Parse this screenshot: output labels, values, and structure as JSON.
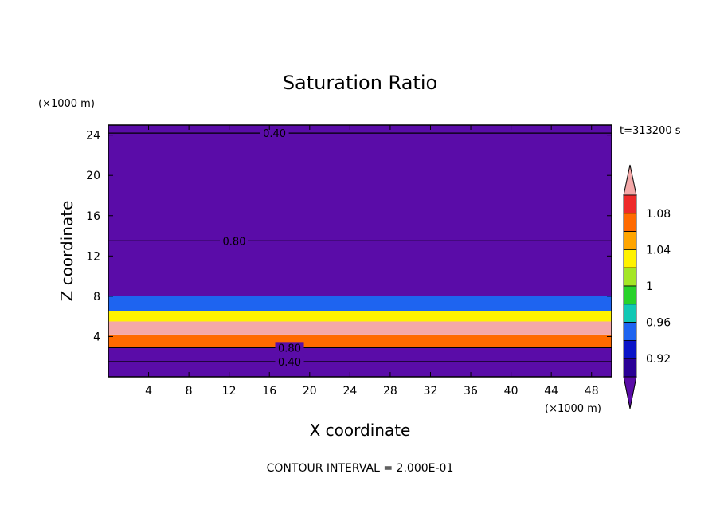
{
  "chart_data": {
    "type": "heatmap",
    "title": "Saturation Ratio",
    "xlabel": "X coordinate",
    "ylabel": "Z coordinate",
    "x_unit": "(×1000 m)",
    "y_unit": "(×1000 m)",
    "time_label": "t=313200 s",
    "footer": "CONTOUR INTERVAL = 2.000E-01",
    "xlim": [
      0,
      50
    ],
    "ylim": [
      0,
      25
    ],
    "x_ticks": [
      4,
      8,
      12,
      16,
      20,
      24,
      28,
      32,
      36,
      40,
      44,
      48
    ],
    "y_ticks": [
      4,
      8,
      12,
      16,
      20,
      24
    ],
    "grid": false,
    "colorbar": {
      "labels": [
        "1.08",
        "1.04",
        "1",
        "0.96",
        "0.92"
      ],
      "label_values": [
        1.08,
        1.04,
        1.0,
        0.96,
        0.92
      ],
      "levels": [
        0.9,
        0.92,
        0.94,
        0.96,
        0.98,
        1.0,
        1.02,
        1.04,
        1.06,
        1.08,
        1.1
      ],
      "colors": [
        "#5a0ca8",
        "#2a0096",
        "#0a14c8",
        "#1e64f0",
        "#10c8b4",
        "#28d22a",
        "#a4e626",
        "#fff200",
        "#ffa500",
        "#ff6a00",
        "#ee2a2a",
        "#f4a8a8"
      ],
      "extend": "both"
    },
    "contours": [
      {
        "label": "0.40",
        "z": 24.2
      },
      {
        "label": "0.40",
        "z": 1.5
      },
      {
        "label": "0.80",
        "z": 13.5
      },
      {
        "label": "0.80",
        "z": 2.9
      }
    ],
    "regions": [
      {
        "zmin": 0,
        "zmax": 3.0,
        "value": 0.88
      },
      {
        "zmin": 3.0,
        "zmax": 4.2,
        "value": 1.06
      },
      {
        "zmin": 4.2,
        "zmax": 5.5,
        "value": 1.1
      },
      {
        "zmin": 5.5,
        "zmax": 6.5,
        "value": 1.02
      },
      {
        "zmin": 6.5,
        "zmax": 8.0,
        "value": 0.95
      },
      {
        "zmin": 8.0,
        "zmax": 25,
        "value": 0.88
      }
    ]
  }
}
